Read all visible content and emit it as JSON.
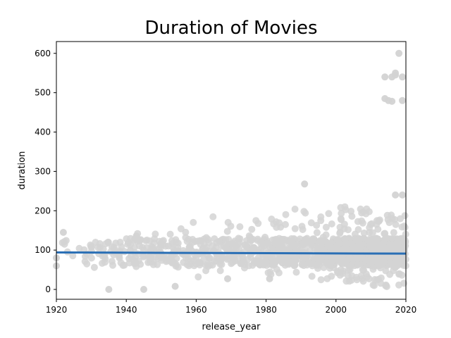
{
  "chart_data": {
    "type": "scatter",
    "title": "Duration of Movies",
    "xlabel": "release_year",
    "ylabel": "duration",
    "xlim": [
      1920,
      2020
    ],
    "ylim": [
      -25,
      630
    ],
    "x_ticks": [
      1920,
      1940,
      1960,
      1980,
      2000,
      2020
    ],
    "y_ticks": [
      0,
      100,
      200,
      300,
      400,
      500,
      600
    ],
    "grid": false,
    "legend": "none",
    "colors": {
      "points": "#d3d3d3",
      "trend_line": "#2a6fb5"
    },
    "scatter_summary": [
      {
        "x_start": 1920,
        "x_end": 1930,
        "y_min": 55,
        "y_max": 145,
        "count": 14
      },
      {
        "x_start": 1930,
        "x_end": 1940,
        "y_min": 50,
        "y_max": 120,
        "count": 40
      },
      {
        "x_start": 1940,
        "x_end": 1950,
        "y_min": 45,
        "y_max": 170,
        "count": 70
      },
      {
        "x_start": 1950,
        "x_end": 1960,
        "y_min": 50,
        "y_max": 175,
        "count": 70
      },
      {
        "x_start": 1960,
        "x_end": 1970,
        "y_min": 30,
        "y_max": 190,
        "count": 80
      },
      {
        "x_start": 1970,
        "x_end": 1980,
        "y_min": 50,
        "y_max": 190,
        "count": 90
      },
      {
        "x_start": 1980,
        "x_end": 1990,
        "y_min": 30,
        "y_max": 205,
        "count": 140
      },
      {
        "x_start": 1990,
        "x_end": 2000,
        "y_min": 20,
        "y_max": 200,
        "count": 180
      },
      {
        "x_start": 2000,
        "x_end": 2010,
        "y_min": 20,
        "y_max": 210,
        "count": 280
      },
      {
        "x_start": 2010,
        "x_end": 2020,
        "y_min": 0,
        "y_max": 195,
        "count": 380
      }
    ],
    "notable_points": [
      {
        "x": 1920,
        "y": 80
      },
      {
        "x": 1920,
        "y": 60
      },
      {
        "x": 1922,
        "y": 145
      },
      {
        "x": 1935,
        "y": 0
      },
      {
        "x": 1945,
        "y": 0
      },
      {
        "x": 1954,
        "y": 8
      },
      {
        "x": 1991,
        "y": 268
      },
      {
        "x": 1981,
        "y": 27
      },
      {
        "x": 1969,
        "y": 27
      },
      {
        "x": 2017,
        "y": 240
      },
      {
        "x": 2019,
        "y": 240
      },
      {
        "x": 2014,
        "y": 485
      },
      {
        "x": 2015,
        "y": 480
      },
      {
        "x": 2016,
        "y": 478
      },
      {
        "x": 2019,
        "y": 480
      },
      {
        "x": 2014,
        "y": 540
      },
      {
        "x": 2016,
        "y": 540
      },
      {
        "x": 2017,
        "y": 545
      },
      {
        "x": 2019,
        "y": 540
      },
      {
        "x": 2017,
        "y": 550
      },
      {
        "x": 2018,
        "y": 600
      }
    ],
    "trend_line": {
      "x": [
        1920,
        2020
      ],
      "y": [
        94,
        91
      ]
    }
  }
}
